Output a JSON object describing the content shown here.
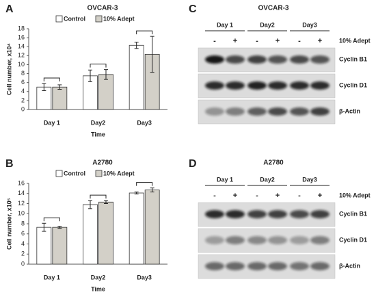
{
  "chart_data": [
    {
      "type": "bar",
      "panel": "A",
      "title": "OVCAR-3",
      "y_label": "Cell number, x10⁴",
      "x_label": "Time",
      "categories": [
        "Day 1",
        "Day2",
        "Day3"
      ],
      "series": [
        {
          "name": "Control",
          "color": "#ffffff",
          "values": [
            5,
            7.5,
            14.3
          ],
          "errors": [
            0.8,
            1.3,
            0.7
          ]
        },
        {
          "name": "10% Adept",
          "color": "#d3d0c8",
          "values": [
            5,
            7.8,
            12.3
          ],
          "errors": [
            0.5,
            1.1,
            4
          ]
        }
      ],
      "ylim": [
        0,
        18
      ],
      "yticks": [
        0,
        2,
        4,
        6,
        8,
        10,
        12,
        14,
        16,
        18
      ]
    },
    {
      "type": "bar",
      "panel": "B",
      "title": "A2780",
      "y_label": "Cell number, x10⁵",
      "x_label": "Time",
      "categories": [
        "Day 1",
        "Day2",
        "Day3"
      ],
      "series": [
        {
          "name": "Control",
          "color": "#ffffff",
          "values": [
            7.3,
            11.8,
            14.1
          ],
          "errors": [
            0.8,
            0.8,
            0.2
          ]
        },
        {
          "name": "10% Adept",
          "color": "#d3d0c8",
          "values": [
            7.3,
            12.3,
            14.7
          ],
          "errors": [
            0.2,
            0.3,
            0.4
          ]
        }
      ],
      "ylim": [
        0,
        16
      ],
      "yticks": [
        0,
        2,
        4,
        6,
        8,
        10,
        12,
        14,
        16
      ]
    }
  ],
  "blots": [
    {
      "panel": "C",
      "title": "OVCAR-3",
      "days": [
        "Day 1",
        "Day2",
        "Day3"
      ],
      "lanes": [
        "-",
        "+",
        "-",
        "+",
        "-",
        "+"
      ],
      "treatment": "10% Adept",
      "bands": [
        "Cyclin B1",
        "Cyclin D1",
        "β-Actin"
      ]
    },
    {
      "panel": "D",
      "title": "A2780",
      "days": [
        "Day 1",
        "Day2",
        "Day3"
      ],
      "lanes": [
        "-",
        "+",
        "-",
        "+",
        "-",
        "+"
      ],
      "treatment": "10% Adept",
      "bands": [
        "Cyclin B1",
        "Cyclin D1",
        "β-Actin"
      ]
    }
  ]
}
